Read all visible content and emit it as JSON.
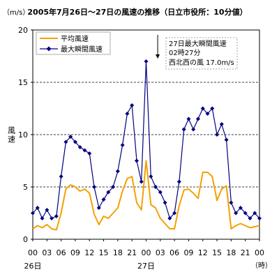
{
  "chart_data": {
    "type": "line",
    "title": "2005年7月26日～27日の風速の推移（日立市役所：10分値）",
    "ylabel": "風速",
    "yunit": "（m/s）",
    "xunit": "（時）",
    "ylim": [
      0,
      20
    ],
    "yticks": [
      "0",
      "5",
      "10",
      "15",
      "20"
    ],
    "xticks": [
      "00",
      "03",
      "06",
      "09",
      "12",
      "15",
      "18",
      "21",
      "00",
      "03",
      "06",
      "09",
      "12",
      "15",
      "18",
      "21",
      "00"
    ],
    "day_labels": [
      {
        "text": "26日",
        "hour": 0
      },
      {
        "text": "27日",
        "hour": 24
      }
    ],
    "gridlines": [
      5,
      10,
      15
    ],
    "legend_position": "top-left",
    "x_hours": [
      0,
      1,
      2,
      3,
      4,
      5,
      6,
      7,
      8,
      9,
      10,
      11,
      12,
      13,
      14,
      15,
      16,
      17,
      18,
      19,
      20,
      21,
      22,
      23,
      24,
      25,
      26,
      27,
      28,
      29,
      30,
      31,
      32,
      33,
      34,
      35,
      36,
      37,
      38,
      39,
      40,
      41,
      42,
      43,
      44,
      45,
      46,
      47,
      48
    ],
    "series": [
      {
        "name": "平均風速",
        "color": "#F5A000",
        "marker": "none",
        "values": [
          1.0,
          1.3,
          1.1,
          1.4,
          1.0,
          0.9,
          2.5,
          4.8,
          5.2,
          5.0,
          4.6,
          4.8,
          4.4,
          2.4,
          1.4,
          2.2,
          2.0,
          2.5,
          3.0,
          4.6,
          5.8,
          6.0,
          3.5,
          2.8,
          7.5,
          3.3,
          3.0,
          2.0,
          1.5,
          1.0,
          1.0,
          3.2,
          4.7,
          4.8,
          4.4,
          3.9,
          6.4,
          6.4,
          6.0,
          3.7,
          4.8,
          5.1,
          1.0,
          1.3,
          1.5,
          1.3,
          1.1,
          1.2,
          1.3
        ]
      },
      {
        "name": "最大瞬間風速",
        "color": "#000080",
        "marker": "diamond",
        "values": [
          2.5,
          3.0,
          2.0,
          2.8,
          2.0,
          2.2,
          6.0,
          9.3,
          9.8,
          9.3,
          8.8,
          8.5,
          8.2,
          5.0,
          3.0,
          3.8,
          4.5,
          5.0,
          6.5,
          9.0,
          12.0,
          12.8,
          7.5,
          5.5,
          17.0,
          6.0,
          5.0,
          4.5,
          3.5,
          2.0,
          2.5,
          5.5,
          10.5,
          11.5,
          10.5,
          11.5,
          12.5,
          12.0,
          12.5,
          10.0,
          11.0,
          9.5,
          3.5,
          2.5,
          3.0,
          2.5,
          2.0,
          2.5,
          2.0
        ]
      }
    ],
    "annotation": {
      "lines": [
        "27日最大瞬間風速",
        "02時27分",
        "西北西の風 17.0m/s"
      ],
      "hour": 26.45,
      "value": 17.0
    }
  }
}
